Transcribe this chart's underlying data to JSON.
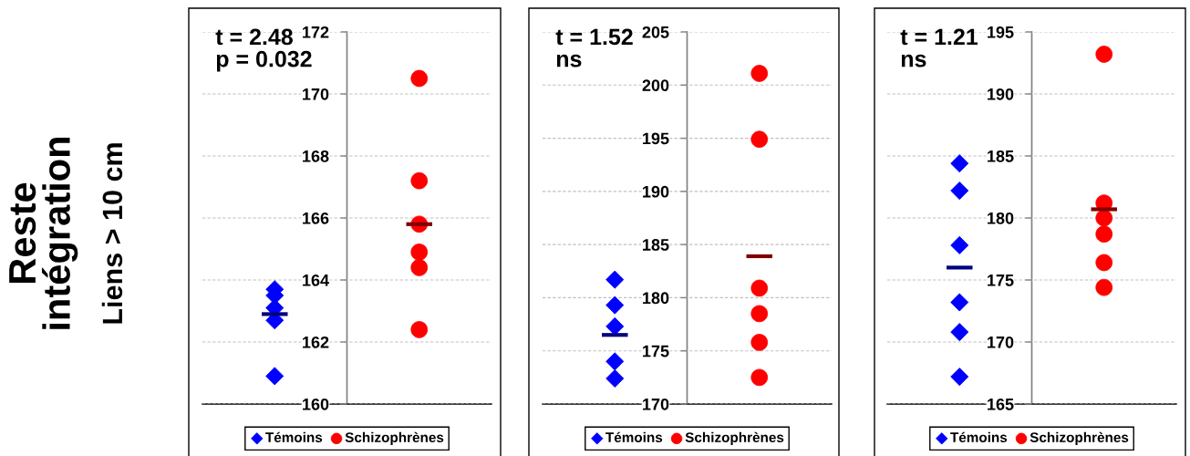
{
  "chart_data": [
    {
      "type": "scatter",
      "title": "Reste\nintégration",
      "ylabel": "Liens > 10 cm",
      "annotations": [
        "t = 2.48\np = 0.032"
      ],
      "categories": [
        null,
        null
      ],
      "tick_labels": "y",
      "series": [
        {
          "name": "Témoins",
          "color": "#0000ff",
          "marker": "diamond",
          "values": [
            163.7,
            null
          ]
        },
        {
          "color": "#0000ff",
          "marker": "diamond",
          "values": [
            163.5,
            null
          ]
        },
        {
          "color": "#0000ff",
          "marker": "diamond",
          "values": [
            163.1,
            null
          ]
        },
        {
          "color": "#0000ff",
          "marker": "diamond",
          "values": [
            162.7,
            null
          ]
        },
        {
          "color": "#0000ff",
          "marker": "diamond",
          "values": [
            160.9,
            null
          ]
        },
        {
          "name": "Schizophrènes",
          "color": "#ff0000",
          "marker": "circle",
          "values": [
            null,
            170.5
          ]
        },
        {
          "color": "#ff0000",
          "marker": "circle",
          "values": [
            null,
            167.2
          ]
        },
        {
          "color": "#ff0000",
          "marker": "circle",
          "values": [
            null,
            165.8
          ]
        },
        {
          "color": "#ff0000",
          "marker": "circle",
          "values": [
            null,
            164.9
          ]
        },
        {
          "color": "#ff0000",
          "marker": "circle",
          "values": [
            null,
            164.4
          ]
        },
        {
          "color": "#ff0000",
          "marker": "circle",
          "values": [
            null,
            162.4
          ]
        }
      ],
      "ref_lines": [
        {
          "axis": "y",
          "value": 162.9,
          "color": "#000080"
        },
        {
          "axis": "y",
          "value": 165.8,
          "color": "#800000"
        }
      ],
      "ylim": [
        160,
        172
      ],
      "yticks": [
        160,
        162,
        164,
        166,
        168,
        170,
        172
      ],
      "grid": "y",
      "legend": "bottom"
    },
    {
      "type": "scatter",
      "annotations": [
        "t = 1.52\nns"
      ],
      "categories": [
        null,
        null
      ],
      "tick_labels": "y",
      "series": [
        {
          "name": "Témoins",
          "color": "#0000ff",
          "marker": "diamond",
          "values": [
            181.7,
            null
          ]
        },
        {
          "color": "#0000ff",
          "marker": "diamond",
          "values": [
            179.3,
            null
          ]
        },
        {
          "color": "#0000ff",
          "marker": "diamond",
          "values": [
            177.3,
            null
          ]
        },
        {
          "color": "#0000ff",
          "marker": "diamond",
          "values": [
            174.0,
            null
          ]
        },
        {
          "color": "#0000ff",
          "marker": "diamond",
          "values": [
            172.4,
            null
          ]
        },
        {
          "name": "Schizophrènes",
          "color": "#ff0000",
          "marker": "circle",
          "values": [
            null,
            201.1
          ]
        },
        {
          "color": "#ff0000",
          "marker": "circle",
          "values": [
            null,
            194.9
          ]
        },
        {
          "color": "#ff0000",
          "marker": "circle",
          "values": [
            null,
            180.9
          ]
        },
        {
          "color": "#ff0000",
          "marker": "circle",
          "values": [
            null,
            178.5
          ]
        },
        {
          "color": "#ff0000",
          "marker": "circle",
          "values": [
            null,
            175.8
          ]
        },
        {
          "color": "#ff0000",
          "marker": "circle",
          "values": [
            null,
            172.5
          ]
        }
      ],
      "ref_lines": [
        {
          "axis": "y",
          "value": 176.5,
          "color": "#000080"
        },
        {
          "axis": "y",
          "value": 183.9,
          "color": "#800000"
        }
      ],
      "ylim": [
        170,
        205
      ],
      "yticks": [
        170,
        175,
        180,
        185,
        190,
        195,
        200,
        205
      ],
      "grid": "y",
      "legend": "bottom"
    },
    {
      "type": "scatter",
      "annotations": [
        "t = 1.21\nns"
      ],
      "categories": [
        null,
        null
      ],
      "tick_labels": "y",
      "series": [
        {
          "name": "Témoins",
          "color": "#0000ff",
          "marker": "diamond",
          "values": [
            184.4,
            null
          ]
        },
        {
          "color": "#0000ff",
          "marker": "diamond",
          "values": [
            182.2,
            null
          ]
        },
        {
          "color": "#0000ff",
          "marker": "diamond",
          "values": [
            177.8,
            null
          ]
        },
        {
          "color": "#0000ff",
          "marker": "diamond",
          "values": [
            173.2,
            null
          ]
        },
        {
          "color": "#0000ff",
          "marker": "diamond",
          "values": [
            170.8,
            null
          ]
        },
        {
          "color": "#0000ff",
          "marker": "diamond",
          "values": [
            167.2,
            null
          ]
        },
        {
          "name": "Schizophrènes",
          "color": "#ff0000",
          "marker": "circle",
          "values": [
            null,
            193.2
          ]
        },
        {
          "color": "#ff0000",
          "marker": "circle",
          "values": [
            null,
            181.2
          ]
        },
        {
          "color": "#ff0000",
          "marker": "circle",
          "values": [
            null,
            180.0
          ]
        },
        {
          "color": "#ff0000",
          "marker": "circle",
          "values": [
            null,
            178.7
          ]
        },
        {
          "color": "#ff0000",
          "marker": "circle",
          "values": [
            null,
            176.4
          ]
        },
        {
          "color": "#ff0000",
          "marker": "circle",
          "values": [
            null,
            174.4
          ]
        }
      ],
      "ref_lines": [
        {
          "axis": "y",
          "value": 176.0,
          "color": "#000080"
        },
        {
          "axis": "y",
          "value": 180.7,
          "color": "#800000"
        }
      ],
      "ylim": [
        165,
        195
      ],
      "yticks": [
        165,
        170,
        175,
        180,
        185,
        190,
        195
      ],
      "grid": "y",
      "legend": "bottom"
    }
  ]
}
